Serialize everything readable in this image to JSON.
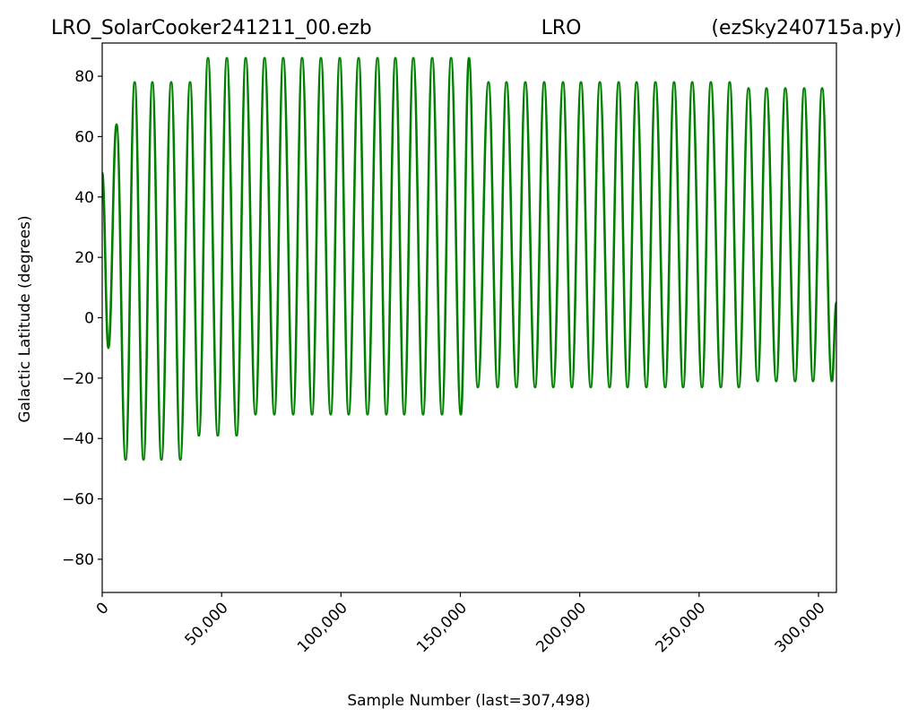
{
  "chart_data": {
    "type": "line",
    "title_left": "LRO_SolarCooker241211_00.ezb",
    "title_center": "LRO",
    "title_right": "(ezSky240715a.py)",
    "xlabel": "Sample Number (last=307,498)",
    "ylabel": "Galactic Latitude (degrees)",
    "color": "#008000",
    "x": [
      0,
      2600,
      6000,
      9800,
      13600,
      17300,
      21000,
      24800,
      28900,
      32700,
      36800,
      40500,
      44300,
      48400,
      52200,
      56300,
      60100,
      64200,
      68000,
      72100,
      75800,
      80000,
      83700,
      87900,
      91600,
      95700,
      99500,
      103200,
      107400,
      111100,
      115300,
      119000,
      122800,
      126500,
      130300,
      134400,
      138200,
      142300,
      146100,
      150200,
      153600,
      157300,
      161800,
      165600,
      169300,
      173500,
      177200,
      181300,
      185100,
      188900,
      193000,
      196700,
      200500,
      204600,
      208400,
      212500,
      216300,
      220000,
      223800,
      227900,
      231700,
      235800,
      239500,
      243300,
      247100,
      251200,
      254900,
      259100,
      262800,
      266600,
      270700,
      274500,
      278200,
      282300,
      286100,
      290200,
      294000,
      297700,
      301500,
      305600,
      307498
    ],
    "values": [
      48,
      -10,
      64,
      -47,
      78,
      -47,
      78,
      -47,
      78,
      -47,
      78,
      -39,
      86,
      -39,
      86,
      -39,
      86,
      -32,
      86,
      -32,
      86,
      -32,
      86,
      -32,
      86,
      -32,
      86,
      -32,
      86,
      -32,
      86,
      -32,
      86,
      -32,
      86,
      -32,
      86,
      -32,
      86,
      -32,
      86,
      -23,
      78,
      -23,
      78,
      -23,
      78,
      -23,
      78,
      -23,
      78,
      -23,
      78,
      -23,
      78,
      -23,
      78,
      -23,
      78,
      -23,
      78,
      -23,
      78,
      -23,
      78,
      -23,
      78,
      -23,
      78,
      -23,
      76,
      -21,
      76,
      -21,
      76,
      -21,
      76,
      -21,
      76,
      -21,
      5
    ],
    "xlim": [
      0,
      307498
    ],
    "ylim": [
      -91,
      91
    ],
    "xticks": [
      0,
      {
        "value": 50000,
        "label": "50,000"
      },
      {
        "value": 100000,
        "label": "100,000"
      },
      {
        "value": 150000,
        "label": "150,000"
      },
      {
        "value": 200000,
        "label": "200,000"
      },
      {
        "value": 250000,
        "label": "250,000"
      },
      {
        "value": 300000,
        "label": "300,000"
      }
    ],
    "yticks": [
      {
        "value": -80,
        "label": "−80"
      },
      {
        "value": -60,
        "label": "−60"
      },
      {
        "value": -40,
        "label": "−40"
      },
      {
        "value": -20,
        "label": "−20"
      },
      0,
      20,
      40,
      60,
      80
    ]
  }
}
